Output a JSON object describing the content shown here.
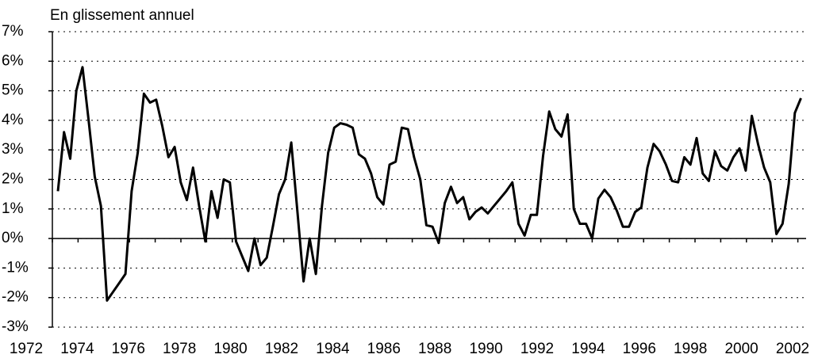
{
  "chart_data": {
    "type": "line",
    "y_axis_label": "En glissement annuel",
    "categories": [
      "1972",
      null,
      null,
      null,
      null,
      null,
      null,
      null,
      "1974",
      null,
      null,
      null,
      null,
      null,
      null,
      null,
      "1976",
      null,
      null,
      null,
      null,
      null,
      null,
      null,
      "1978",
      null,
      null,
      null,
      null,
      null,
      null,
      null,
      "1980",
      null,
      null,
      null,
      null,
      null,
      null,
      null,
      "1982",
      null,
      null,
      null,
      null,
      null,
      null,
      null,
      "1984",
      null,
      null,
      null,
      null,
      null,
      null,
      null,
      "1986",
      null,
      null,
      null,
      null,
      null,
      null,
      null,
      "1988",
      null,
      null,
      null,
      null,
      null,
      null,
      null,
      "1990",
      null,
      null,
      null,
      null,
      null,
      null,
      null,
      "1992",
      null,
      null,
      null,
      null,
      null,
      null,
      null,
      "1994",
      null,
      null,
      null,
      null,
      null,
      null,
      null,
      "1996",
      null,
      null,
      null,
      null,
      null,
      null,
      null,
      "1998",
      null,
      null,
      null,
      null,
      null,
      null,
      null,
      "2000",
      null,
      null,
      null,
      null,
      null,
      null,
      null,
      "2002",
      null
    ],
    "series": [
      {
        "name": null,
        "color": "#000000",
        "values": [
          1.6,
          3.6,
          2.7,
          5.0,
          5.8,
          4.0,
          2.1,
          1.1,
          -2.1,
          -1.8,
          -1.5,
          -1.2,
          1.6,
          2.9,
          4.9,
          4.6,
          4.7,
          3.8,
          2.75,
          3.1,
          1.9,
          1.3,
          2.4,
          1.1,
          -0.1,
          1.6,
          0.7,
          2.0,
          1.9,
          -0.1,
          -0.6,
          -1.1,
          0,
          -0.9,
          -0.65,
          0.4,
          1.5,
          2.0,
          3.25,
          0.9,
          -1.45,
          0,
          -1.2,
          1.1,
          2.9,
          3.75,
          3.9,
          3.85,
          3.75,
          2.85,
          2.7,
          2.2,
          1.4,
          1.15,
          2.5,
          2.6,
          3.75,
          3.7,
          2.75,
          2.0,
          0.45,
          0.4,
          -0.15,
          1.2,
          1.75,
          1.2,
          1.4,
          0.65,
          0.9,
          1.05,
          0.85,
          1.1,
          1.35,
          1.6,
          1.9,
          0.5,
          0.1,
          0.8,
          0.8,
          2.8,
          4.3,
          3.7,
          3.45,
          4.2,
          1.0,
          0.5,
          0.5,
          0,
          1.35,
          1.65,
          1.4,
          0.95,
          0.4,
          0.4,
          0.9,
          1.05,
          2.4,
          3.2,
          2.95,
          2.5,
          1.95,
          1.9,
          2.75,
          2.5,
          3.4,
          2.2,
          1.95,
          2.95,
          2.45,
          2.3,
          2.75,
          3.05,
          2.3,
          4.15,
          3.2,
          2.4,
          1.9,
          0.15,
          0.5,
          1.85,
          4.25,
          4.75
        ]
      }
    ],
    "ylim": [
      -3,
      7
    ],
    "yticks": [
      {
        "value": -3,
        "label": "-3%"
      },
      {
        "value": -2,
        "label": "-2%"
      },
      {
        "value": -1,
        "label": "-1%"
      },
      {
        "value": 0,
        "label": "0%"
      },
      {
        "value": 1,
        "label": "1%"
      },
      {
        "value": 2,
        "label": "2%"
      },
      {
        "value": 3,
        "label": "3%"
      },
      {
        "value": 4,
        "label": "4%"
      },
      {
        "value": 5,
        "label": "5%"
      },
      {
        "value": 6,
        "label": "6%"
      },
      {
        "value": 7,
        "label": "7%"
      }
    ],
    "grid": true
  }
}
